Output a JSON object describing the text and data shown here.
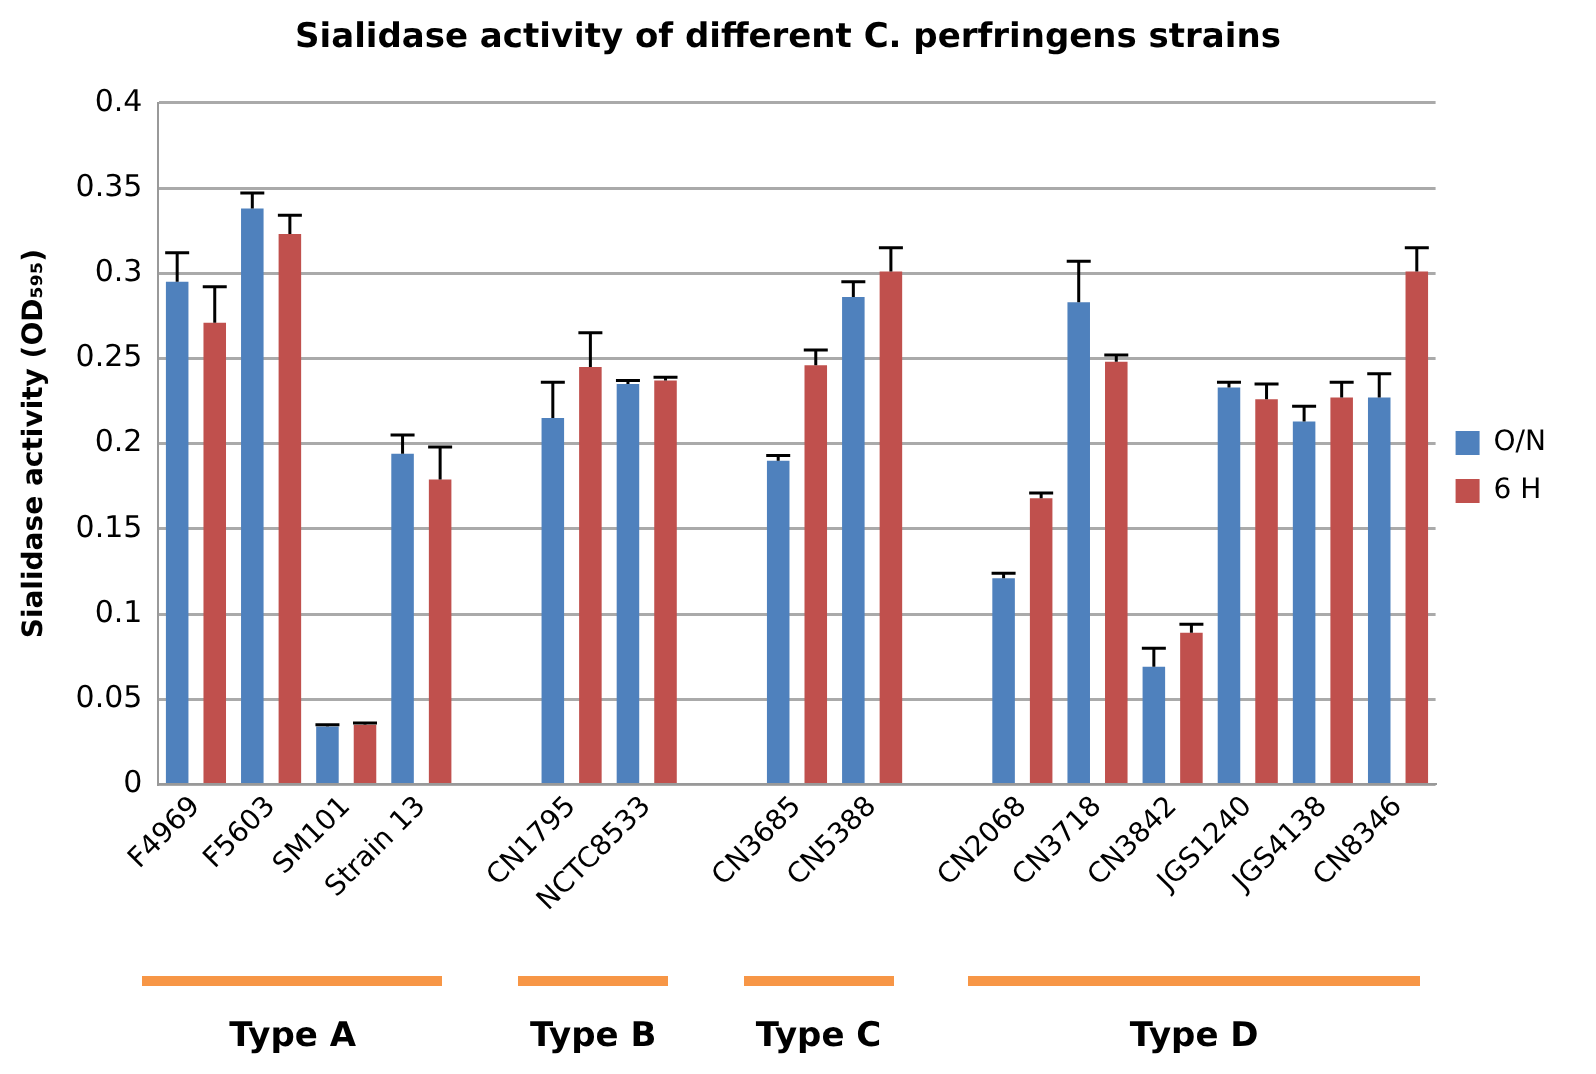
{
  "chart_data": {
    "type": "bar",
    "title": "Sialidase activity of different C. perfringens strains",
    "ylabel": "Sialidase activity (OD₅₉₅)",
    "categories": [
      "F4969",
      "F5603",
      "SM101",
      "Strain 13",
      null,
      "CN1795",
      "NCTC8533",
      null,
      "CN3685",
      "CN5388",
      null,
      "CN2068",
      "CN3718",
      "CN3842",
      "JGS1240",
      "JGS4138",
      "CN8346"
    ],
    "series": [
      {
        "name": "O/N",
        "color": "#4f81bd",
        "values": [
          0.295,
          0.338,
          0.034,
          0.194,
          null,
          0.215,
          0.235,
          null,
          0.19,
          0.286,
          null,
          0.121,
          0.283,
          0.069,
          0.233,
          0.213,
          0.227
        ],
        "errors": [
          0.017,
          0.009,
          0.001,
          0.011,
          null,
          0.021,
          0.002,
          null,
          0.003,
          0.009,
          null,
          0.003,
          0.024,
          0.011,
          0.003,
          0.009,
          0.014
        ]
      },
      {
        "name": "6 H",
        "color": "#c0504d",
        "values": [
          0.271,
          0.323,
          0.035,
          0.179,
          null,
          0.245,
          0.237,
          null,
          0.246,
          0.301,
          null,
          0.168,
          0.248,
          0.089,
          0.226,
          0.227,
          0.301
        ],
        "errors": [
          0.021,
          0.011,
          0.001,
          0.019,
          null,
          0.02,
          0.002,
          null,
          0.009,
          0.014,
          null,
          0.003,
          0.004,
          0.005,
          0.009,
          0.009,
          0.014
        ]
      }
    ],
    "ylim": [
      0,
      0.4
    ],
    "yticks": [
      0,
      0.05,
      0.1,
      0.15,
      0.2,
      0.25,
      0.3,
      0.35,
      0.4
    ],
    "grid": "y",
    "legend": "right",
    "annotations": [
      "Type A",
      "Type B",
      "Type C",
      "Type D"
    ]
  }
}
